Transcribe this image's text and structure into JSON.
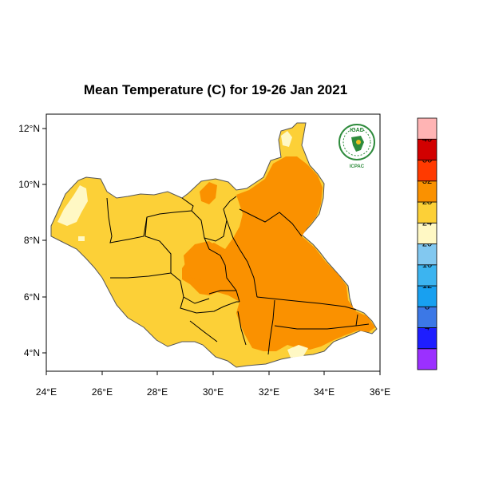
{
  "title": "Mean Temperature (C) for 19-26 Jan 2021",
  "logo": {
    "top_text": "IGAD",
    "bottom_text": "ICPAC"
  },
  "axes": {
    "x_ticks": [
      "24°E",
      "26°E",
      "28°E",
      "30°E",
      "32°E",
      "34°E",
      "36°E"
    ],
    "y_ticks": [
      "12°N",
      "10°N",
      "8°N",
      "6°N",
      "4°N"
    ]
  },
  "colorbar": {
    "levels": [
      {
        "label": "",
        "color": "#9b30ff"
      },
      {
        "label": "4",
        "color": "#1e1eff"
      },
      {
        "label": "8",
        "color": "#3c78e6"
      },
      {
        "label": "12",
        "color": "#18a0f0"
      },
      {
        "label": "16",
        "color": "#3cb4f0"
      },
      {
        "label": "20",
        "color": "#82c8f0"
      },
      {
        "label": "24",
        "color": "#fff8c4"
      },
      {
        "label": "28",
        "color": "#fcd037"
      },
      {
        "label": "32",
        "color": "#fa9100"
      },
      {
        "label": "36",
        "color": "#ff3a00"
      },
      {
        "label": "40",
        "color": "#d20000"
      },
      {
        "label": "",
        "color": "#ffb4b4"
      }
    ]
  },
  "colors": {
    "warm_yellow": "#fcd037",
    "orange": "#fa9100",
    "light_yellow": "#fff8c4",
    "border": "#000000",
    "outline": "#555555"
  }
}
